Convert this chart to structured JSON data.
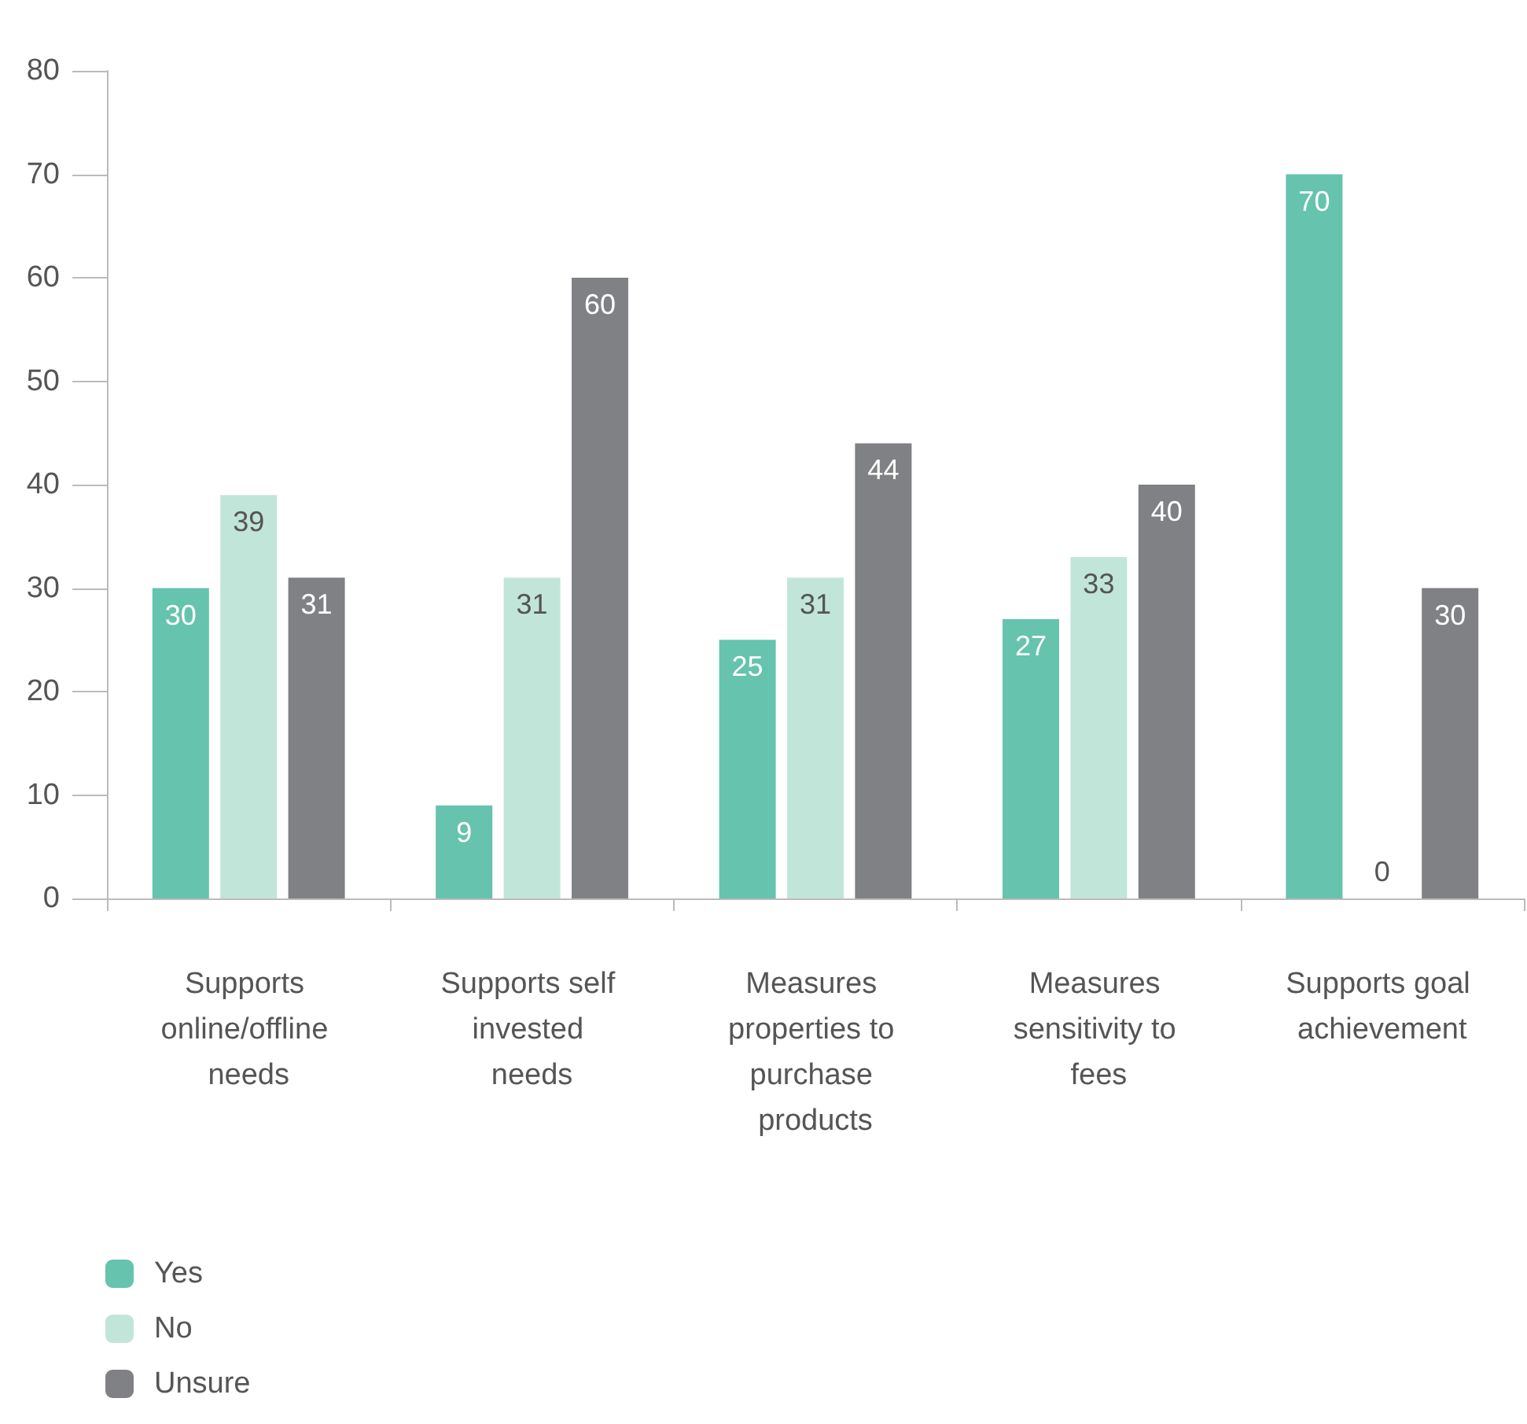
{
  "chart_data": {
    "type": "bar",
    "categories": [
      "Supports online/offline needs",
      "Supports self invested needs",
      "Measures properties to purchase products",
      "Measures sensitivity to fees",
      "Supports goal achievement"
    ],
    "series": [
      {
        "name": "Yes",
        "color": "#66c3ae",
        "values": [
          30,
          9,
          25,
          27,
          70
        ]
      },
      {
        "name": "No",
        "color": "#c2e5da",
        "values": [
          39,
          31,
          31,
          33,
          0
        ]
      },
      {
        "name": "Unsure",
        "color": "#808184",
        "values": [
          31,
          60,
          44,
          40,
          30
        ]
      }
    ],
    "ylim": [
      0,
      80
    ],
    "yticks": [
      0,
      10,
      20,
      30,
      40,
      50,
      60,
      70,
      80
    ],
    "grid": false,
    "legend": "bottom left",
    "data_labels": true
  }
}
